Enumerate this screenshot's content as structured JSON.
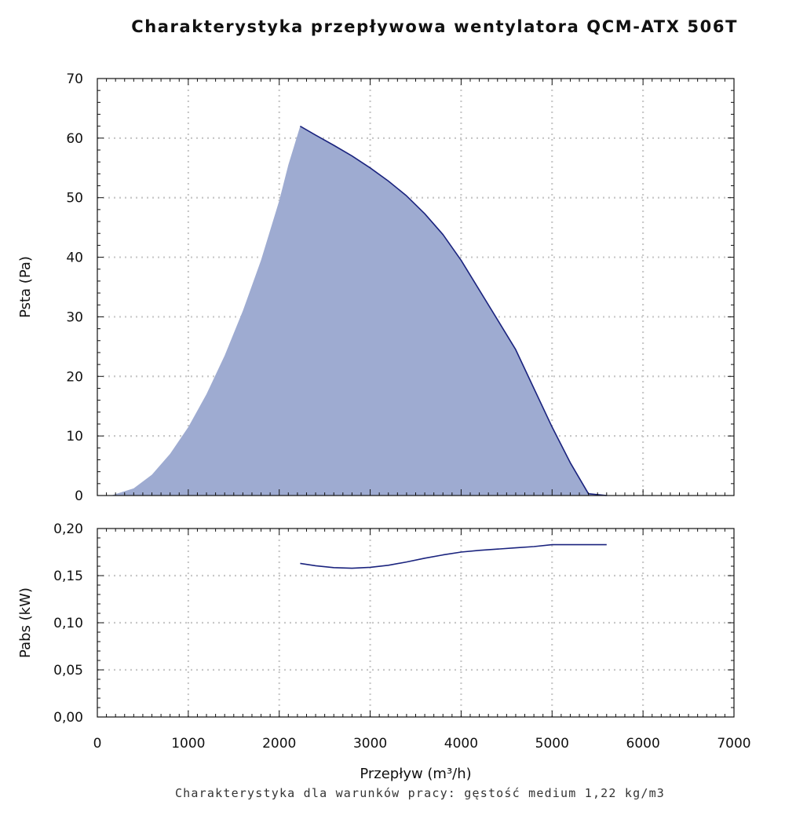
{
  "title": "Charakterystyka przepływowa wentylatora QCM-ATX 506T",
  "footnote": "Charakterystyka dla warunków pracy: gęstość medium 1,22 kg/m3",
  "colors": {
    "fill": "#9eabd1",
    "line": "#1a237e",
    "grid": "#c8c8c8",
    "axis": "#111111"
  },
  "chart_data": [
    {
      "type": "area",
      "ylabel": "Psta (Pa)",
      "xlim": [
        0,
        7000
      ],
      "ylim": [
        0,
        70
      ],
      "xticks": [
        0,
        1000,
        2000,
        3000,
        4000,
        5000,
        6000,
        7000
      ],
      "yticks": [
        0,
        10,
        20,
        30,
        40,
        50,
        60,
        70
      ],
      "ytick_labels": [
        "0",
        "10",
        "20",
        "30",
        "40",
        "50",
        "60",
        "70"
      ],
      "grid": true,
      "series": [
        {
          "style": "system-curve-area",
          "x": [
            150,
            400,
            600,
            800,
            1000,
            1200,
            1400,
            1600,
            1800,
            2000,
            2100,
            2230
          ],
          "y": [
            0,
            1.2,
            3.5,
            7,
            11.5,
            17,
            23.5,
            31,
            39.5,
            49.5,
            55.5,
            62
          ]
        },
        {
          "style": "fan-curve",
          "x": [
            2230,
            2400,
            2600,
            2800,
            3000,
            3200,
            3400,
            3600,
            3800,
            4000,
            4200,
            4400,
            4600,
            4800,
            5000,
            5200,
            5400,
            5600
          ],
          "y": [
            62,
            60.5,
            58.8,
            57,
            55,
            52.8,
            50.3,
            47.3,
            43.8,
            39.5,
            34.5,
            29.5,
            24.5,
            18,
            11.5,
            5.5,
            0.3,
            0
          ]
        }
      ]
    },
    {
      "type": "line",
      "xlabel": "Przepływ (m³/h)",
      "ylabel": "Pabs (kW)",
      "xlim": [
        0,
        7000
      ],
      "ylim": [
        0,
        0.2
      ],
      "xticks": [
        0,
        1000,
        2000,
        3000,
        4000,
        5000,
        6000,
        7000
      ],
      "xtick_labels": [
        "0",
        "1000",
        "2000",
        "3000",
        "4000",
        "5000",
        "6000",
        "7000"
      ],
      "yticks": [
        0,
        0.05,
        0.1,
        0.15,
        0.2
      ],
      "ytick_labels": [
        "0,00",
        "0,05",
        "0,10",
        "0,15",
        "0,20"
      ],
      "grid": true,
      "series": [
        {
          "style": "power-curve",
          "x": [
            2230,
            2400,
            2600,
            2800,
            3000,
            3200,
            3400,
            3600,
            3800,
            4000,
            4200,
            4400,
            4600,
            4800,
            5000,
            5200,
            5400,
            5600
          ],
          "y": [
            0.163,
            0.1605,
            0.1585,
            0.1578,
            0.1588,
            0.161,
            0.1645,
            0.1685,
            0.172,
            0.175,
            0.1768,
            0.1782,
            0.1795,
            0.1808,
            0.1828,
            0.1828,
            0.1828,
            0.1828
          ]
        }
      ]
    }
  ]
}
